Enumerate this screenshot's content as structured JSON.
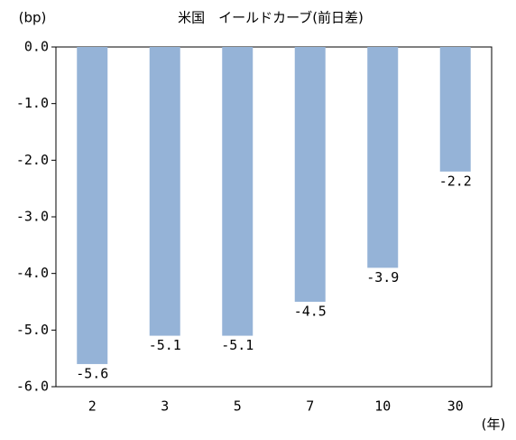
{
  "chart_data": {
    "type": "bar",
    "title": "米国　イールドカーブ(前日差)",
    "y_unit": "(bp)",
    "x_unit": "(年)",
    "categories": [
      "2",
      "3",
      "5",
      "7",
      "10",
      "30"
    ],
    "values": [
      -5.6,
      -5.1,
      -5.1,
      -4.5,
      -3.9,
      -2.2
    ],
    "color": "#95b3d7",
    "ylim": [
      -6,
      0
    ],
    "yticks": [
      {
        "value": 0,
        "label": "0.0"
      },
      {
        "value": -1,
        "label": "-1.0"
      },
      {
        "value": -2,
        "label": "-2.0"
      },
      {
        "value": -3,
        "label": "-3.0"
      },
      {
        "value": -4,
        "label": "-4.0"
      },
      {
        "value": -5,
        "label": "-5.0"
      },
      {
        "value": -6,
        "label": "-6.0"
      }
    ],
    "grid": false
  }
}
